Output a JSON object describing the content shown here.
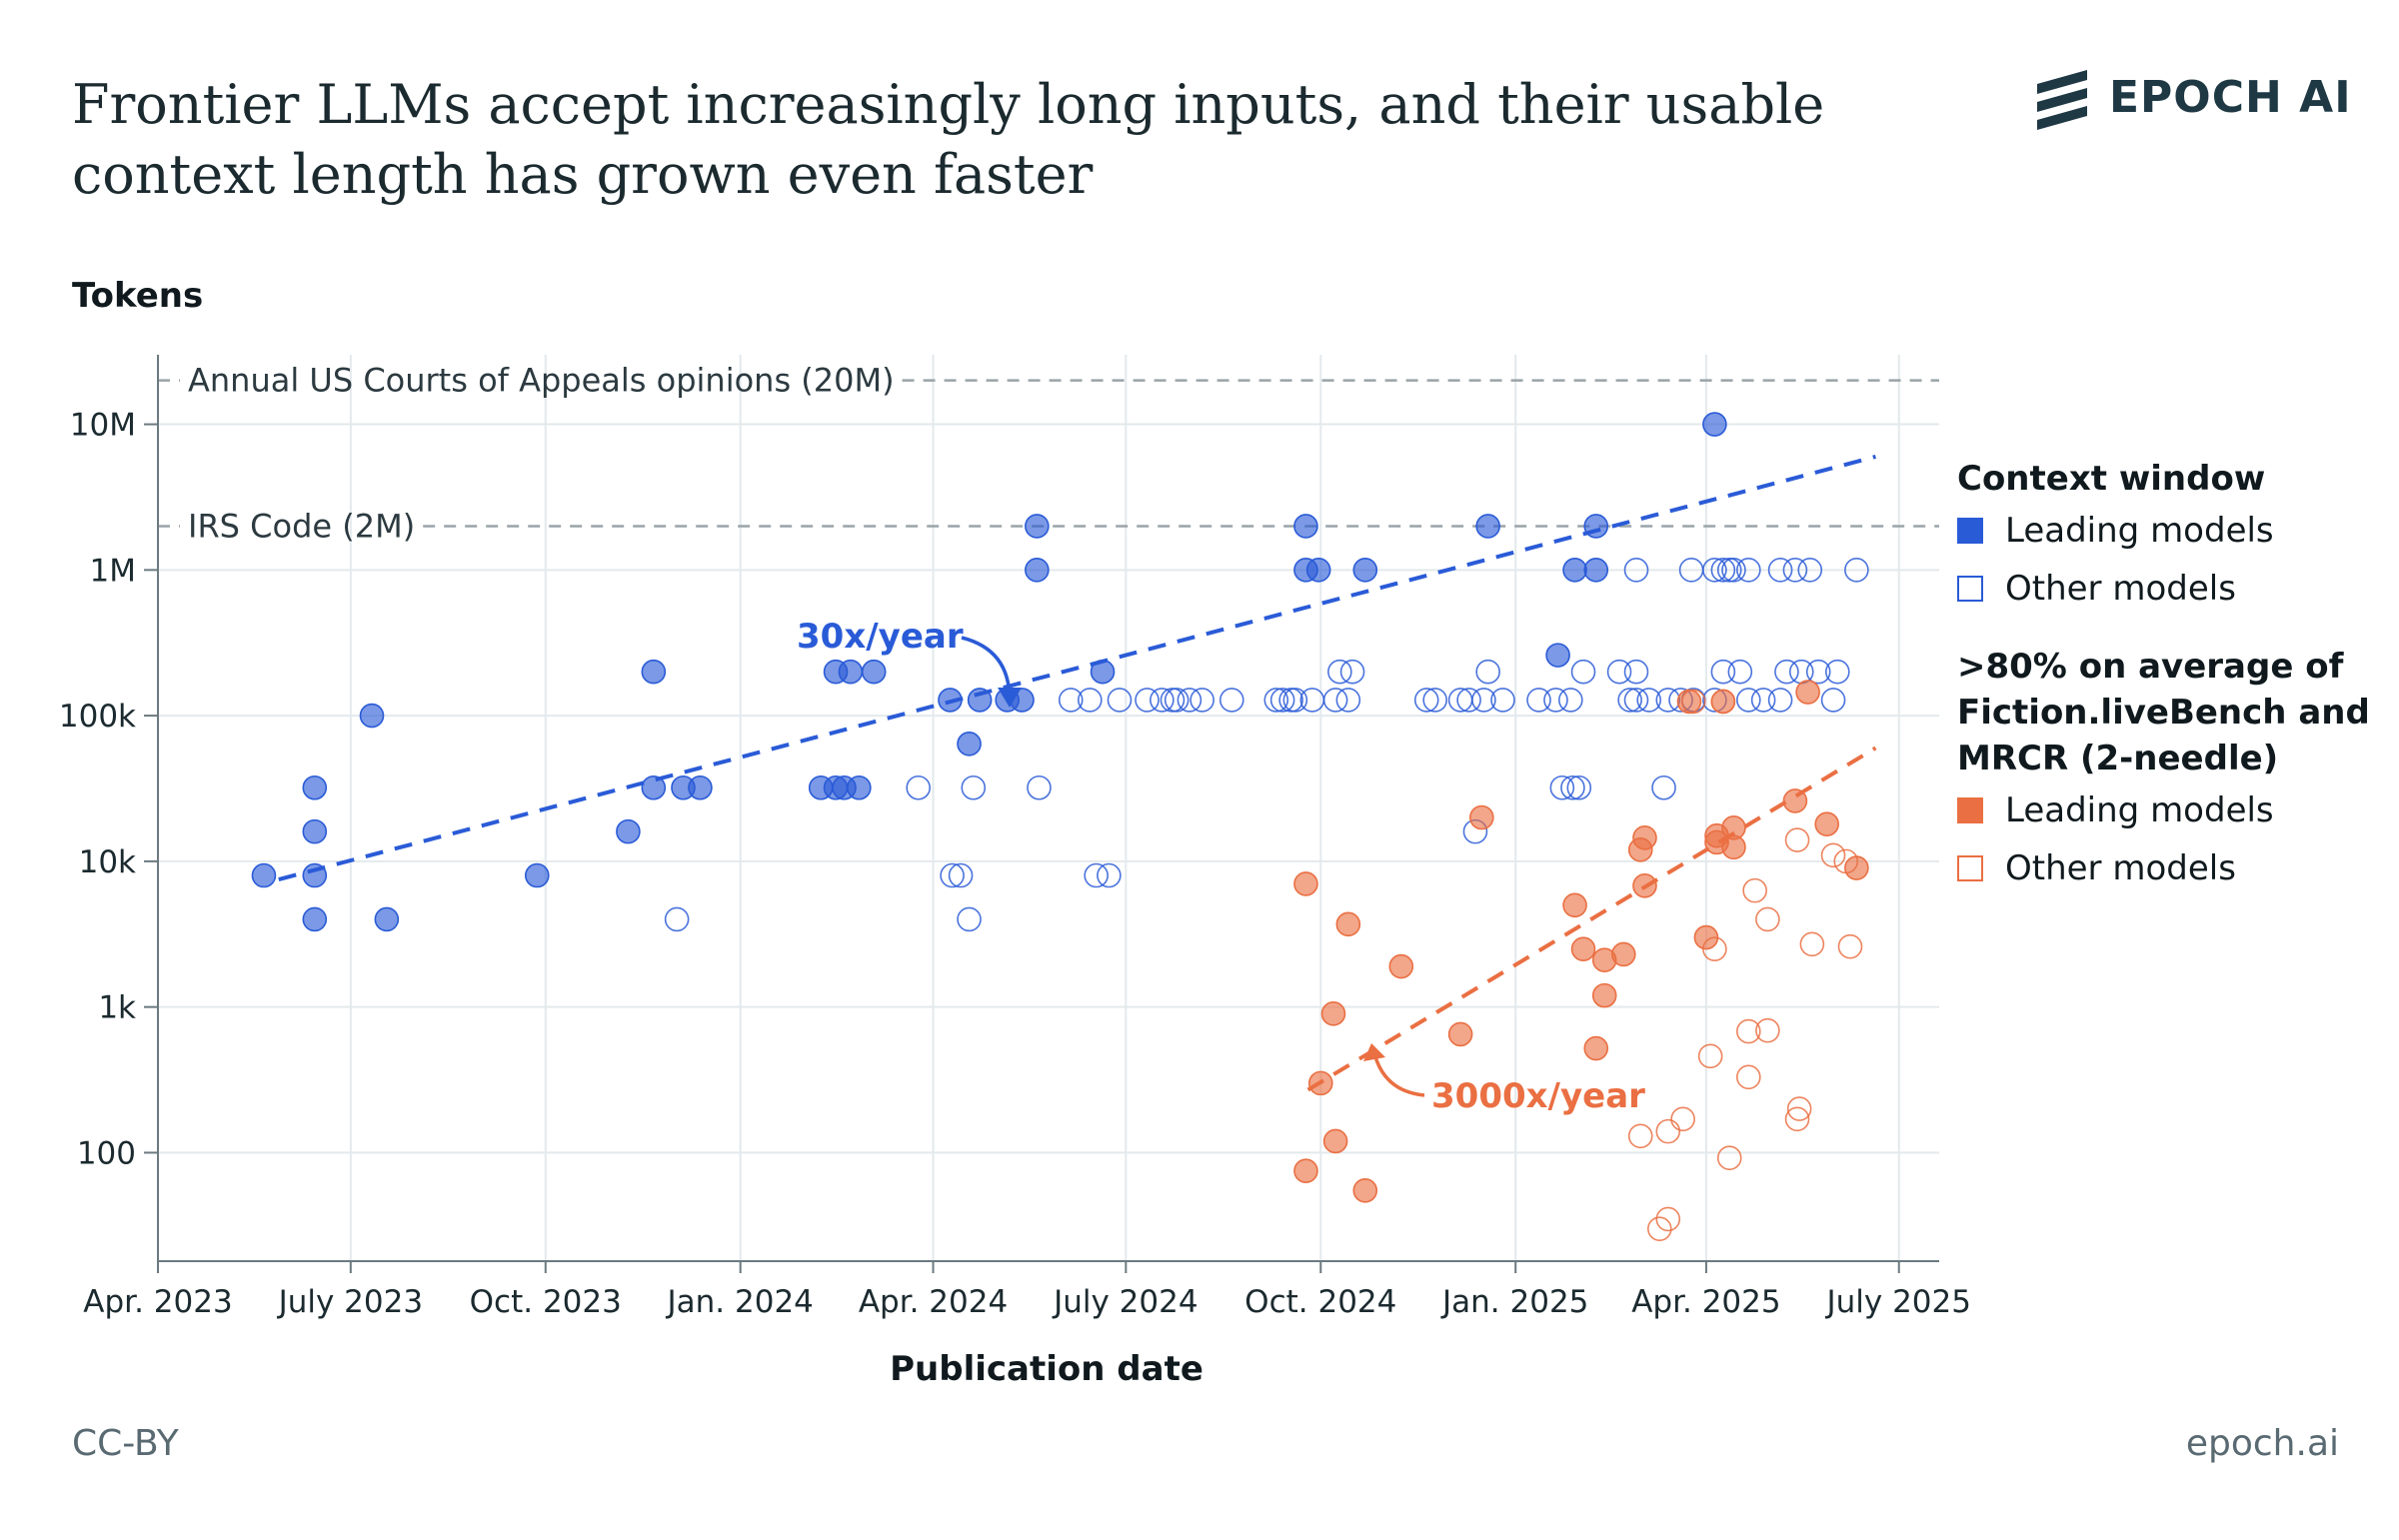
{
  "title": "Frontier LLMs accept increasingly long inputs, and their usable context length has grown even faster",
  "brand": "EPOCH AI",
  "footer": {
    "license": "CC-BY",
    "site": "epoch.ai"
  },
  "colors": {
    "blue": "#2a5bd7",
    "orange": "#ea6f42",
    "grid": "#e3e9ec",
    "ref": "#9aa4a8"
  },
  "legend": {
    "group1_title": "Context window",
    "group1_leading": "Leading models",
    "group1_other": "Other models",
    "group2_title_lines": [
      ">80% on average of",
      "Fiction.liveBench and",
      "MRCR (2-needle)"
    ],
    "group2_leading": "Leading models",
    "group2_other": "Other models"
  },
  "chart_data": {
    "type": "scatter",
    "xlabel": "Publication date",
    "ylabel": "Tokens",
    "y_scale": "log",
    "xlim": [
      "2023-04-01",
      "2025-07-20"
    ],
    "ylim": [
      18,
      30000000
    ],
    "x_ticks": [
      {
        "date": "2023-04-01",
        "label": "Apr. 2023"
      },
      {
        "date": "2023-07-01",
        "label": "July 2023"
      },
      {
        "date": "2023-10-01",
        "label": "Oct. 2023"
      },
      {
        "date": "2024-01-01",
        "label": "Jan. 2024"
      },
      {
        "date": "2024-04-01",
        "label": "Apr. 2024"
      },
      {
        "date": "2024-07-01",
        "label": "July 2024"
      },
      {
        "date": "2024-10-01",
        "label": "Oct. 2024"
      },
      {
        "date": "2025-01-01",
        "label": "Jan. 2025"
      },
      {
        "date": "2025-04-01",
        "label": "Apr. 2025"
      },
      {
        "date": "2025-07-01",
        "label": "July 2025"
      }
    ],
    "y_ticks": [
      {
        "value": 100,
        "label": "100"
      },
      {
        "value": 1000,
        "label": "1k"
      },
      {
        "value": 10000,
        "label": "10k"
      },
      {
        "value": 100000,
        "label": "100k"
      },
      {
        "value": 1000000,
        "label": "1M"
      },
      {
        "value": 10000000,
        "label": "10M"
      }
    ],
    "grid": true,
    "legend_position": "right",
    "reference_lines": [
      {
        "value": 20000000,
        "label": "Annual US Courts of Appeals opinions (20M)"
      },
      {
        "value": 2000000,
        "label": "IRS Code (2M)"
      }
    ],
    "trends": [
      {
        "series": "context",
        "label": "30x/year",
        "start": [
          "2023-05-28",
          7500
        ],
        "end": [
          "2025-06-20",
          6000000
        ]
      },
      {
        "series": "usable",
        "label": "3000x/year",
        "start": [
          "2024-09-25",
          270
        ],
        "end": [
          "2025-06-20",
          60000
        ]
      }
    ],
    "series": [
      {
        "group": "Context window",
        "kind": "Leading models",
        "points": [
          [
            "2023-05-21",
            8000
          ],
          [
            "2023-06-14",
            32000
          ],
          [
            "2023-06-14",
            16000
          ],
          [
            "2023-06-14",
            8000
          ],
          [
            "2023-06-14",
            4000
          ],
          [
            "2023-07-11",
            100000
          ],
          [
            "2023-07-18",
            4000
          ],
          [
            "2023-09-27",
            8000
          ],
          [
            "2023-11-09",
            16000
          ],
          [
            "2023-11-21",
            200000
          ],
          [
            "2023-11-21",
            32000
          ],
          [
            "2023-12-05",
            32000
          ],
          [
            "2023-12-13",
            32000
          ],
          [
            "2024-02-08",
            32000
          ],
          [
            "2024-02-15",
            200000
          ],
          [
            "2024-02-15",
            32000
          ],
          [
            "2024-02-19",
            32000
          ],
          [
            "2024-02-22",
            200000
          ],
          [
            "2024-02-26",
            32000
          ],
          [
            "2024-03-04",
            200000
          ],
          [
            "2024-04-09",
            128000
          ],
          [
            "2024-04-18",
            64000
          ],
          [
            "2024-04-23",
            128000
          ],
          [
            "2024-05-06",
            128000
          ],
          [
            "2024-05-13",
            128000
          ],
          [
            "2024-05-20",
            2000000
          ],
          [
            "2024-05-20",
            1000000
          ],
          [
            "2024-06-20",
            200000
          ],
          [
            "2024-09-24",
            2000000
          ],
          [
            "2024-09-24",
            1000000
          ],
          [
            "2024-09-30",
            1000000
          ],
          [
            "2024-10-22",
            1000000
          ],
          [
            "2024-12-19",
            2000000
          ],
          [
            "2025-01-21",
            260000
          ],
          [
            "2025-01-29",
            1000000
          ],
          [
            "2025-02-08",
            2000000
          ],
          [
            "2025-02-08",
            1000000
          ],
          [
            "2025-04-05",
            10000000
          ]
        ]
      },
      {
        "group": "Context window",
        "kind": "Other models",
        "points": [
          [
            "2023-12-02",
            4000
          ],
          [
            "2024-03-25",
            32000
          ],
          [
            "2024-04-10",
            8000
          ],
          [
            "2024-04-14",
            8000
          ],
          [
            "2024-04-18",
            4000
          ],
          [
            "2024-04-20",
            32000
          ],
          [
            "2024-05-21",
            32000
          ],
          [
            "2024-06-05",
            128000
          ],
          [
            "2024-06-14",
            128000
          ],
          [
            "2024-06-17",
            8000
          ],
          [
            "2024-06-23",
            8000
          ],
          [
            "2024-06-28",
            128000
          ],
          [
            "2024-07-11",
            128000
          ],
          [
            "2024-07-18",
            128000
          ],
          [
            "2024-07-23",
            128000
          ],
          [
            "2024-07-25",
            128000
          ],
          [
            "2024-07-31",
            128000
          ],
          [
            "2024-08-06",
            128000
          ],
          [
            "2024-08-20",
            128000
          ],
          [
            "2024-09-10",
            128000
          ],
          [
            "2024-09-13",
            128000
          ],
          [
            "2024-09-17",
            128000
          ],
          [
            "2024-09-19",
            128000
          ],
          [
            "2024-09-27",
            128000
          ],
          [
            "2024-10-08",
            128000
          ],
          [
            "2024-10-10",
            200000
          ],
          [
            "2024-10-14",
            128000
          ],
          [
            "2024-10-16",
            200000
          ],
          [
            "2024-11-20",
            128000
          ],
          [
            "2024-11-24",
            128000
          ],
          [
            "2024-12-06",
            128000
          ],
          [
            "2024-12-10",
            128000
          ],
          [
            "2024-12-13",
            16000
          ],
          [
            "2024-12-17",
            128000
          ],
          [
            "2024-12-19",
            200000
          ],
          [
            "2024-12-26",
            128000
          ],
          [
            "2025-01-12",
            128000
          ],
          [
            "2025-01-20",
            128000
          ],
          [
            "2025-01-23",
            32000
          ],
          [
            "2025-01-27",
            128000
          ],
          [
            "2025-01-28",
            32000
          ],
          [
            "2025-01-31",
            32000
          ],
          [
            "2025-02-02",
            200000
          ],
          [
            "2025-02-19",
            200000
          ],
          [
            "2025-02-24",
            128000
          ],
          [
            "2025-02-27",
            1000000
          ],
          [
            "2025-02-27",
            200000
          ],
          [
            "2025-02-27",
            128000
          ],
          [
            "2025-03-05",
            128000
          ],
          [
            "2025-03-12",
            32000
          ],
          [
            "2025-03-14",
            128000
          ],
          [
            "2025-03-20",
            128000
          ],
          [
            "2025-03-25",
            1000000
          ],
          [
            "2025-03-26",
            128000
          ],
          [
            "2025-04-05",
            1000000
          ],
          [
            "2025-04-05",
            128000
          ],
          [
            "2025-04-09",
            1000000
          ],
          [
            "2025-04-09",
            200000
          ],
          [
            "2025-04-12",
            1000000
          ],
          [
            "2025-04-14",
            1000000
          ],
          [
            "2025-04-17",
            200000
          ],
          [
            "2025-04-21",
            1000000
          ],
          [
            "2025-04-21",
            128000
          ],
          [
            "2025-04-28",
            128000
          ],
          [
            "2025-05-06",
            1000000
          ],
          [
            "2025-05-06",
            128000
          ],
          [
            "2025-05-09",
            200000
          ],
          [
            "2025-05-13",
            1000000
          ],
          [
            "2025-05-16",
            200000
          ],
          [
            "2025-05-20",
            1000000
          ],
          [
            "2025-05-24",
            200000
          ],
          [
            "2025-05-31",
            128000
          ],
          [
            "2025-06-02",
            200000
          ],
          [
            "2025-06-11",
            1000000
          ]
        ]
      },
      {
        "group": ">80% on average of Fiction.liveBench and MRCR (2-needle)",
        "kind": "Leading models",
        "points": [
          [
            "2024-09-24",
            7000
          ],
          [
            "2024-09-24",
            75
          ],
          [
            "2024-10-01",
            300
          ],
          [
            "2024-10-07",
            900
          ],
          [
            "2024-10-08",
            120
          ],
          [
            "2024-10-14",
            3700
          ],
          [
            "2024-10-22",
            55
          ],
          [
            "2024-11-08",
            1900
          ],
          [
            "2024-12-06",
            650
          ],
          [
            "2024-12-16",
            20000
          ],
          [
            "2025-01-29",
            5000
          ],
          [
            "2025-02-02",
            2500
          ],
          [
            "2025-02-08",
            520
          ],
          [
            "2025-02-12",
            2100
          ],
          [
            "2025-02-12",
            1200
          ],
          [
            "2025-02-21",
            2300
          ],
          [
            "2025-03-01",
            12000
          ],
          [
            "2025-03-03",
            14500
          ],
          [
            "2025-03-03",
            6800
          ],
          [
            "2025-03-24",
            125000
          ],
          [
            "2025-04-01",
            3000
          ],
          [
            "2025-04-06",
            15000
          ],
          [
            "2025-04-06",
            13500
          ],
          [
            "2025-04-09",
            125000
          ],
          [
            "2025-04-14",
            17000
          ],
          [
            "2025-04-14",
            12500
          ],
          [
            "2025-05-13",
            26000
          ],
          [
            "2025-05-19",
            145000
          ],
          [
            "2025-05-28",
            18000
          ],
          [
            "2025-06-11",
            9000
          ]
        ]
      },
      {
        "group": ">80% on average of Fiction.liveBench and MRCR (2-needle)",
        "kind": "Other models",
        "points": [
          [
            "2025-03-01",
            130
          ],
          [
            "2025-03-10",
            30
          ],
          [
            "2025-03-14",
            35
          ],
          [
            "2025-03-14",
            140
          ],
          [
            "2025-03-21",
            170
          ],
          [
            "2025-03-26",
            125000
          ],
          [
            "2025-04-03",
            460
          ],
          [
            "2025-04-05",
            2500
          ],
          [
            "2025-04-09",
            125000
          ],
          [
            "2025-04-12",
            92
          ],
          [
            "2025-04-21",
            330
          ],
          [
            "2025-04-21",
            680
          ],
          [
            "2025-04-24",
            6300
          ],
          [
            "2025-04-30",
            690
          ],
          [
            "2025-04-30",
            4000
          ],
          [
            "2025-05-14",
            14000
          ],
          [
            "2025-05-14",
            170
          ],
          [
            "2025-05-15",
            200
          ],
          [
            "2025-05-21",
            2700
          ],
          [
            "2025-05-31",
            11000
          ],
          [
            "2025-06-08",
            2600
          ],
          [
            "2025-06-06",
            10000
          ]
        ]
      }
    ]
  }
}
